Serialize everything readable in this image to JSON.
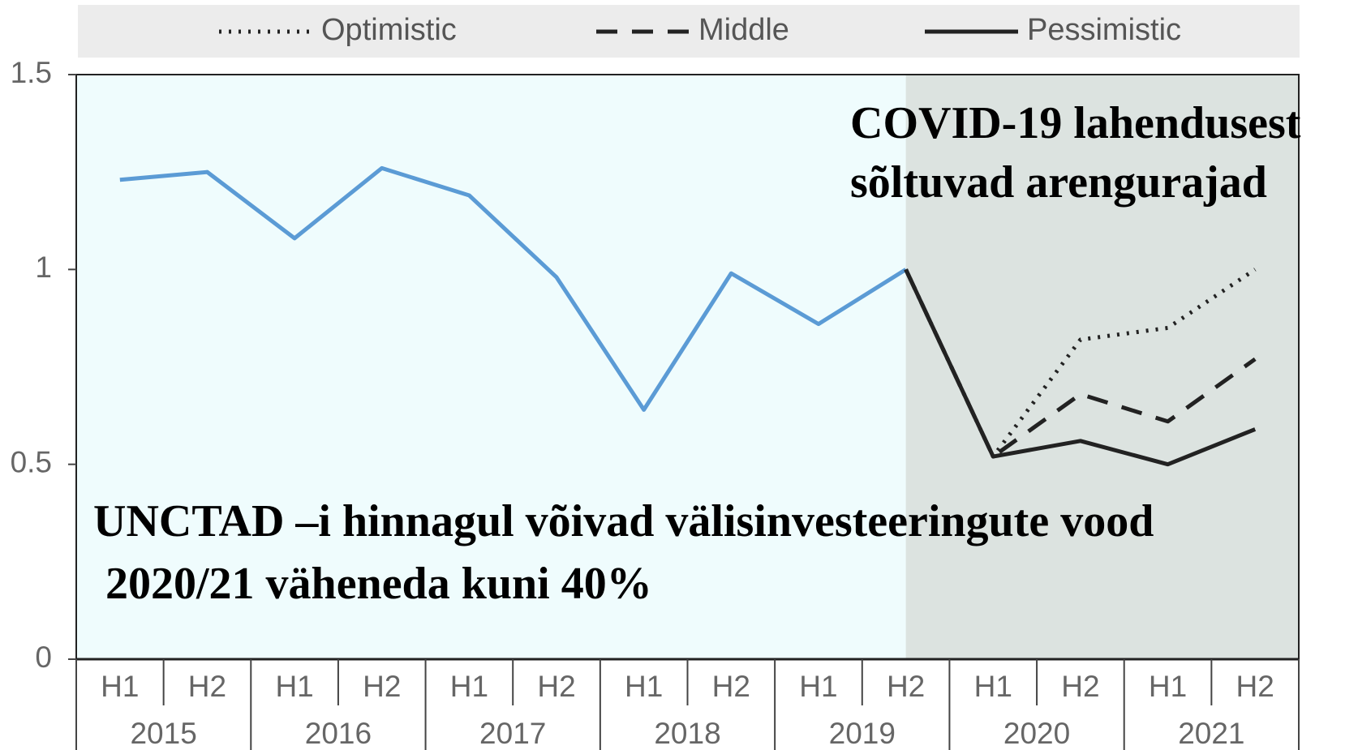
{
  "chart_data": {
    "type": "line",
    "categories": [
      "H1",
      "H2",
      "H1",
      "H2",
      "H1",
      "H2",
      "H1",
      "H2",
      "H1",
      "H2",
      "H1",
      "H2",
      "H1",
      "H2"
    ],
    "groups": [
      "2015",
      "2016",
      "2017",
      "2018",
      "2019",
      "2020",
      "2021"
    ],
    "series": [
      {
        "color": "#5b9bd5",
        "dash": "solid",
        "values": [
          1.23,
          1.25,
          1.08,
          1.26,
          1.19,
          0.98,
          0.64,
          0.99,
          0.86,
          1.0,
          null,
          null,
          null,
          null
        ]
      },
      {
        "name": "Optimistic",
        "color": "#222222",
        "dash": "dotted",
        "values": [
          null,
          null,
          null,
          null,
          null,
          null,
          null,
          null,
          null,
          1.0,
          0.52,
          0.82,
          0.85,
          1.0
        ]
      },
      {
        "name": "Middle",
        "color": "#222222",
        "dash": "dashed",
        "values": [
          null,
          null,
          null,
          null,
          null,
          null,
          null,
          null,
          null,
          1.0,
          0.52,
          0.68,
          0.61,
          0.77
        ]
      },
      {
        "name": "Pessimistic",
        "color": "#222222",
        "dash": "solid",
        "values": [
          null,
          null,
          null,
          null,
          null,
          null,
          null,
          null,
          null,
          1.0,
          0.52,
          0.56,
          0.5,
          0.59
        ]
      }
    ],
    "ylim": [
      0,
      1.5
    ],
    "yticks": [
      0,
      0.5,
      1,
      1.5
    ],
    "annotations": [
      {
        "lines": [
          "COVID-19 lahendusest",
          "sõltuvad arengurajad"
        ]
      },
      {
        "lines": [
          "UNCTAD –i hinnagul võivad välisinvesteeringute vood",
          "2020/21 väheneda kuni 40%"
        ]
      }
    ]
  }
}
